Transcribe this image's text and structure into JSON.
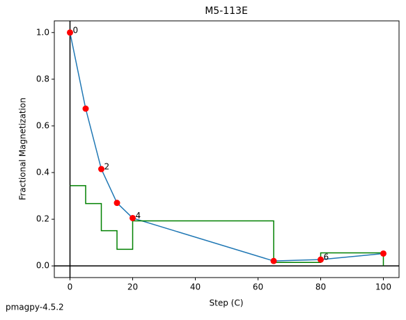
{
  "chart_data": {
    "type": "line",
    "title": "M5-113E",
    "xlabel": "Step (C)",
    "ylabel": "Fractional Magnetization",
    "footer": "pmagpy-4.5.2",
    "x": [
      0,
      5,
      10,
      15,
      20,
      65,
      80,
      100
    ],
    "point_labels": [
      "0",
      null,
      "2",
      null,
      "4",
      null,
      "6",
      null
    ],
    "series": [
      {
        "values": [
          1.0,
          0.674,
          0.415,
          0.27,
          0.205,
          0.021,
          0.027,
          0.053
        ],
        "color": "#1f77b4",
        "marker_color": "red",
        "drawstyle": "default"
      },
      {
        "values": [
          0.344,
          0.267,
          0.151,
          0.071,
          0.193,
          0.015,
          0.056,
          0
        ],
        "color": "green",
        "drawstyle": "steps-post"
      }
    ],
    "reference_lines": {
      "x": 0,
      "y": 0
    },
    "xlim": [
      -5,
      105
    ],
    "ylim": [
      -0.05,
      1.05
    ],
    "xticks": [
      0,
      20,
      40,
      60,
      80,
      100
    ],
    "yticks": [
      {
        "value": 0,
        "label": "0.0"
      },
      {
        "value": 0.2,
        "label": "0.2"
      },
      {
        "value": 0.4,
        "label": "0.4"
      },
      {
        "value": 0.6,
        "label": "0.6"
      },
      {
        "value": 0.8,
        "label": "0.8"
      },
      {
        "value": 1.0,
        "label": "1.0"
      }
    ]
  }
}
